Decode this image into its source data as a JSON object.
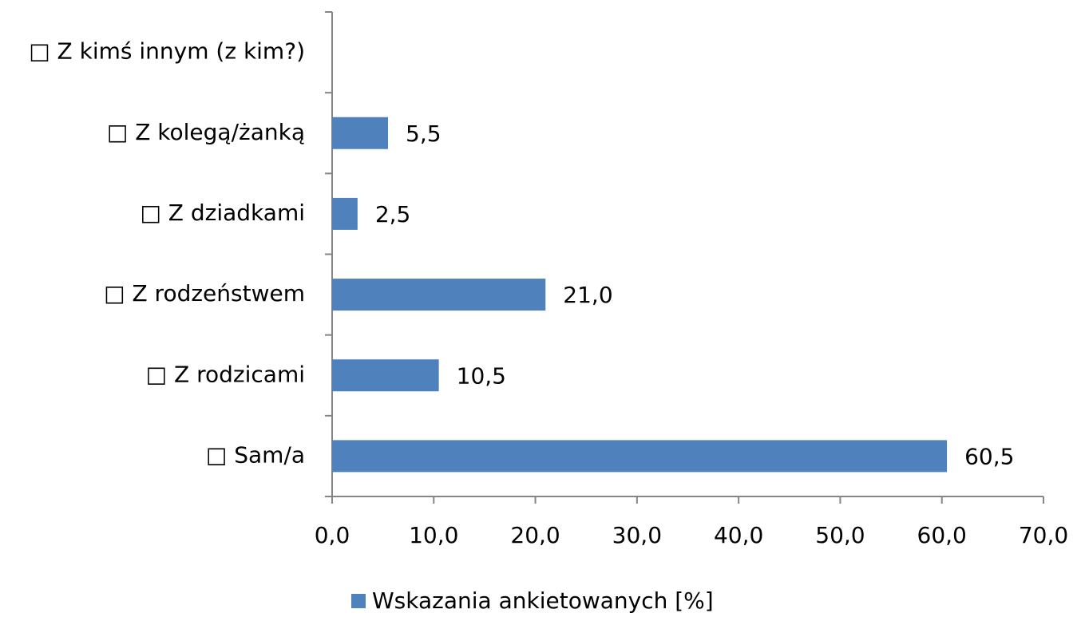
{
  "chart_data": {
    "type": "bar",
    "orientation": "horizontal",
    "categories": [
      "□ Z kimś innym (z kim?)",
      "□ Z kolegą/żanką",
      "□ Z dziadkami",
      "□ Z rodzeństwem",
      "□ Z rodzicami",
      "□ Sam/a"
    ],
    "series": [
      {
        "name": "Wskazania ankietowanych [%]",
        "color": "#4f81bd",
        "values": [
          null,
          5.5,
          2.5,
          21.0,
          10.5,
          60.5
        ],
        "value_labels": [
          null,
          "5,5",
          "2,5",
          "21,0",
          "10,5",
          "60,5"
        ]
      }
    ],
    "xlim": [
      0,
      70
    ],
    "xticks": [
      {
        "value": 0,
        "label": "0,0"
      },
      {
        "value": 10,
        "label": "10,0"
      },
      {
        "value": 20,
        "label": "20,0"
      },
      {
        "value": 30,
        "label": "30,0"
      },
      {
        "value": 40,
        "label": "40,0"
      },
      {
        "value": 50,
        "label": "50,0"
      },
      {
        "value": 60,
        "label": "60,0"
      },
      {
        "value": 70,
        "label": "70,0"
      }
    ],
    "legend": "bottom"
  }
}
